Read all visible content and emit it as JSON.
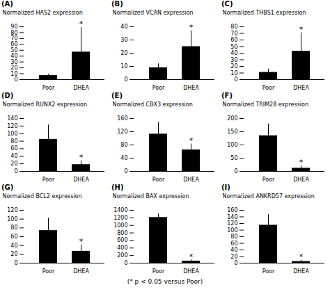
{
  "chart_data": [
    {
      "type": "bar",
      "title": "(A)",
      "ylabel": "Normalized HAS2 expression",
      "categories": [
        "Poor",
        "DHEA"
      ],
      "values": [
        7,
        47
      ],
      "errors": [
        2,
        42
      ],
      "color": "#000000",
      "ylim": [
        0,
        90
      ],
      "yticks": [
        0,
        10,
        20,
        30,
        40,
        50,
        60,
        70,
        80,
        90
      ],
      "annotations": [
        {
          "text": "*",
          "x": "DHEA"
        }
      ]
    },
    {
      "type": "bar",
      "title": "(B)",
      "ylabel": "Normalized VCAN expression",
      "categories": [
        "Poor",
        "DHEA"
      ],
      "values": [
        9,
        25
      ],
      "errors": [
        3,
        12
      ],
      "color": "#000000",
      "ylim": [
        0,
        40
      ],
      "yticks": [
        0,
        10,
        20,
        30,
        40
      ],
      "annotations": [
        {
          "text": "*",
          "x": "DHEA"
        }
      ]
    },
    {
      "type": "bar",
      "title": "(C)",
      "ylabel": "Normalized THBS1 expression",
      "categories": [
        "Poor",
        "DHEA"
      ],
      "values": [
        11,
        43
      ],
      "errors": [
        5,
        28
      ],
      "color": "#000000",
      "ylim": [
        0,
        80
      ],
      "yticks": [
        0,
        10,
        20,
        30,
        40,
        50,
        60,
        70,
        80
      ],
      "annotations": [
        {
          "text": "*",
          "x": "DHEA"
        }
      ]
    },
    {
      "type": "bar",
      "title": "(D)",
      "ylabel": "Normalized RUNX2 expression",
      "categories": [
        "Poor",
        "DHEA"
      ],
      "values": [
        85,
        18
      ],
      "errors": [
        38,
        10
      ],
      "color": "#000000",
      "ylim": [
        0,
        140
      ],
      "yticks": [
        0,
        20,
        40,
        60,
        80,
        100,
        120,
        140
      ],
      "annotations": [
        {
          "text": "*",
          "x": "DHEA"
        }
      ]
    },
    {
      "type": "bar",
      "title": "(E)",
      "ylabel": "Normalized CBX3 expression",
      "categories": [
        "Poor",
        "DHEA"
      ],
      "values": [
        113,
        65
      ],
      "errors": [
        35,
        18
      ],
      "color": "#000000",
      "ylim": [
        0,
        160
      ],
      "yticks": [
        0,
        40,
        80,
        120,
        160
      ],
      "annotations": [
        {
          "text": "*",
          "x": "DHEA"
        }
      ]
    },
    {
      "type": "bar",
      "title": "(F)",
      "ylabel": "Normalized TRIM28 expression",
      "categories": [
        "Poor",
        "DHEA"
      ],
      "values": [
        135,
        12
      ],
      "errors": [
        45,
        10
      ],
      "color": "#000000",
      "ylim": [
        0,
        200
      ],
      "yticks": [
        0,
        50,
        100,
        150,
        200
      ],
      "annotations": [
        {
          "text": "*",
          "x": "DHEA"
        }
      ]
    },
    {
      "type": "bar",
      "title": "(G)",
      "ylabel": "Normalized BCL2 expression",
      "categories": [
        "Poor",
        "DHEA"
      ],
      "values": [
        74,
        27
      ],
      "errors": [
        28,
        15
      ],
      "color": "#000000",
      "ylim": [
        0,
        120
      ],
      "yticks": [
        0,
        20,
        40,
        60,
        80,
        100,
        120
      ],
      "annotations": [
        {
          "text": "*",
          "x": "DHEA"
        }
      ]
    },
    {
      "type": "bar",
      "title": "(H)",
      "ylabel": "Normalized BAX expression",
      "categories": [
        "Poor",
        "DHEA"
      ],
      "values": [
        1210,
        55
      ],
      "errors": [
        95,
        35
      ],
      "color": "#000000",
      "ylim": [
        0,
        1400
      ],
      "yticks": [
        0,
        200,
        400,
        600,
        800,
        1000,
        1200,
        1400
      ],
      "annotations": [
        {
          "text": "*",
          "x": "DHEA"
        }
      ]
    },
    {
      "type": "bar",
      "title": "(I)",
      "ylabel": "Normalized ANKRD57 expression",
      "categories": [
        "Poor",
        "DHEA"
      ],
      "values": [
        115,
        5
      ],
      "errors": [
        32,
        4
      ],
      "color": "#000000",
      "ylim": [
        0,
        160
      ],
      "yticks": [
        0,
        20,
        40,
        60,
        80,
        100,
        120,
        140,
        160
      ],
      "annotations": [
        {
          "text": "*",
          "x": "DHEA"
        }
      ]
    }
  ],
  "caption": "(* p < 0.05 versus Poor)"
}
